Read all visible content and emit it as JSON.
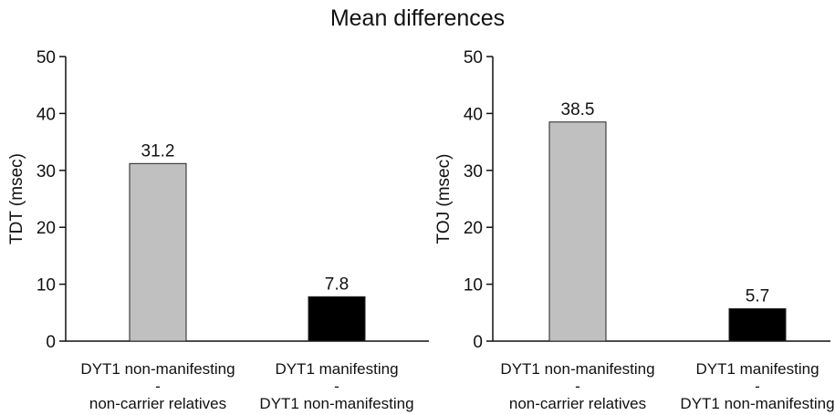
{
  "title": "Mean differences",
  "chart_data": [
    {
      "type": "bar",
      "ylabel": "TDT (msec)",
      "ylim": [
        0,
        50
      ],
      "yticks": [
        0,
        10,
        20,
        30,
        40,
        50
      ],
      "categories": [
        [
          "DYT1 non-manifesting",
          "-",
          "non-carrier relatives"
        ],
        [
          "DYT1 manifesting",
          "-",
          "DYT1 non-manifesting"
        ]
      ],
      "values": [
        31.2,
        7.8
      ],
      "data_labels": [
        "31.2",
        "7.8"
      ],
      "bar_colors": [
        "#c0c0c0",
        "#000000"
      ]
    },
    {
      "type": "bar",
      "ylabel": "TOJ (msec)",
      "ylim": [
        0,
        50
      ],
      "yticks": [
        0,
        10,
        20,
        30,
        40,
        50
      ],
      "categories": [
        [
          "DYT1 non-manifesting",
          "-",
          "non-carrier relatives"
        ],
        [
          "DYT1 manifesting",
          "-",
          "DYT1 non-manifesting"
        ]
      ],
      "values": [
        38.5,
        5.7
      ],
      "data_labels": [
        "38.5",
        "5.7"
      ],
      "bar_colors": [
        "#c0c0c0",
        "#000000"
      ]
    }
  ]
}
